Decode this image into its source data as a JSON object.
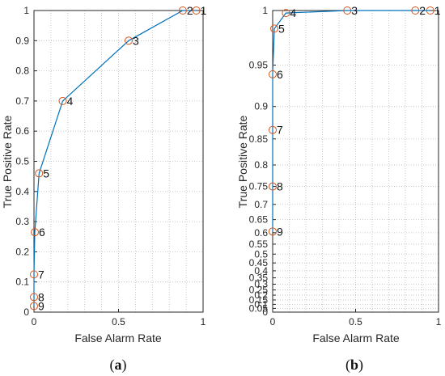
{
  "chart_data": [
    {
      "type": "line",
      "xlabel": "False Alarm Rate",
      "ylabel": "True Positive Rate",
      "xlim": [
        0,
        1
      ],
      "ylim": [
        0,
        1
      ],
      "xticks": [
        "0",
        "0.5",
        "1"
      ],
      "yticks": [
        "0",
        "0.1",
        "0.2",
        "0.3",
        "0.4",
        "0.5",
        "0.6",
        "0.7",
        "0.8",
        "0.9",
        "1"
      ],
      "grid": true,
      "line_color": "#0072BD",
      "marker_color": "#D95319",
      "points": [
        {
          "label": "1",
          "x": 0.96,
          "y": 1.0
        },
        {
          "label": "2",
          "x": 0.88,
          "y": 1.0
        },
        {
          "label": "3",
          "x": 0.56,
          "y": 0.9
        },
        {
          "label": "4",
          "x": 0.17,
          "y": 0.7
        },
        {
          "label": "5",
          "x": 0.03,
          "y": 0.46
        },
        {
          "label": "6",
          "x": 0.005,
          "y": 0.265
        },
        {
          "label": "7",
          "x": 0.0,
          "y": 0.125
        },
        {
          "label": "8",
          "x": 0.0,
          "y": 0.05
        },
        {
          "label": "9",
          "x": 0.0,
          "y": 0.02
        }
      ],
      "caption_open": "(",
      "caption_letter": "a",
      "caption_close": ")"
    },
    {
      "type": "line",
      "xlabel": "False Alarm Rate",
      "ylabel": "True Positive Rate",
      "xlim": [
        0,
        1
      ],
      "ylim": [
        0,
        1
      ],
      "xticks": [
        "0",
        "0.5",
        "1"
      ],
      "yticks": [
        "0",
        "0.05",
        "0.1",
        "0.15",
        "0.2",
        "0.25",
        "0.3",
        "0.35",
        "0.4",
        "0.45",
        "0.5",
        "0.55",
        "0.6",
        "0.65",
        "0.7",
        "0.75",
        "0.8",
        "0.85",
        "0.9",
        "0.95",
        "1"
      ],
      "yscale": "reciprocal",
      "grid": true,
      "line_color": "#0072BD",
      "marker_color": "#D95319",
      "points": [
        {
          "label": "1",
          "x": 0.95,
          "y": 1.0
        },
        {
          "label": "2",
          "x": 0.86,
          "y": 1.0
        },
        {
          "label": "3",
          "x": 0.45,
          "y": 1.0
        },
        {
          "label": "4",
          "x": 0.08,
          "y": 0.998
        },
        {
          "label": "5",
          "x": 0.01,
          "y": 0.985
        },
        {
          "label": "6",
          "x": 0.0,
          "y": 0.94
        },
        {
          "label": "7",
          "x": 0.0,
          "y": 0.865
        },
        {
          "label": "8",
          "x": 0.0,
          "y": 0.75
        },
        {
          "label": "9",
          "x": 0.0,
          "y": 0.605
        }
      ],
      "caption_open": "(",
      "caption_letter": "b",
      "caption_close": ")"
    }
  ]
}
